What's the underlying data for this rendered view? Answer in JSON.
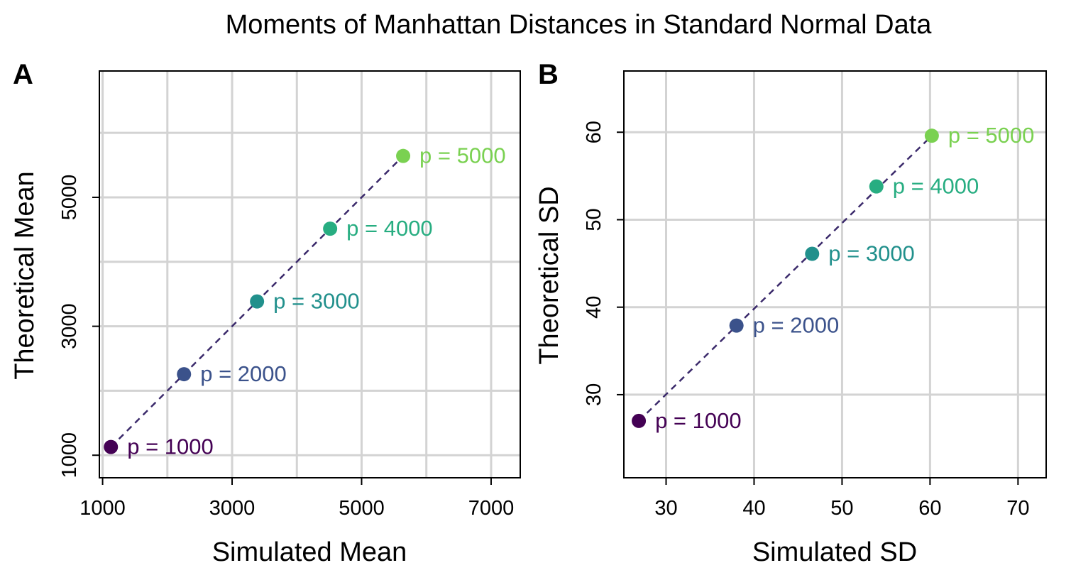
{
  "figure": {
    "title": "Moments of Manhattan Distances in Standard Normal Data"
  },
  "chart_data": [
    {
      "panel": "A",
      "type": "scatter",
      "xlabel": "Simulated Mean",
      "ylabel": "Theoretical Mean",
      "xlim": [
        950,
        7450
      ],
      "ylim": [
        650,
        6960
      ],
      "xticks": [
        1000,
        3000,
        5000,
        7000
      ],
      "xtick_labels": [
        "1000",
        "3000",
        "5000",
        "7000"
      ],
      "yticks": [
        1000,
        3000,
        5000
      ],
      "ytick_labels": [
        "1000",
        "3000",
        "5000"
      ],
      "x_grid": [
        1000,
        2000,
        3000,
        4000,
        5000,
        6000,
        7000
      ],
      "y_grid": [
        1000,
        2000,
        3000,
        4000,
        5000,
        6000
      ],
      "grid": true,
      "reference_line": "dashed line through points",
      "points": [
        {
          "label": "p = 1000",
          "x": 1128,
          "y": 1128,
          "color": "#440154"
        },
        {
          "label": "p = 2000",
          "x": 2257,
          "y": 2257,
          "color": "#3b528b"
        },
        {
          "label": "p = 3000",
          "x": 3385,
          "y": 3385,
          "color": "#21908c"
        },
        {
          "label": "p = 4000",
          "x": 4514,
          "y": 4514,
          "color": "#27ad81"
        },
        {
          "label": "p = 5000",
          "x": 5642,
          "y": 5642,
          "color": "#7ad151"
        }
      ]
    },
    {
      "panel": "B",
      "type": "scatter",
      "xlabel": "Simulated SD",
      "ylabel": "Theoretical SD",
      "xlim": [
        25.2,
        73.2
      ],
      "ylim": [
        20.5,
        67
      ],
      "xticks": [
        30,
        40,
        50,
        60,
        70
      ],
      "xtick_labels": [
        "30",
        "40",
        "50",
        "60",
        "70"
      ],
      "yticks": [
        30,
        40,
        50,
        60
      ],
      "ytick_labels": [
        "30",
        "40",
        "50",
        "60"
      ],
      "x_grid": [
        30,
        40,
        50,
        60,
        70
      ],
      "y_grid": [
        30,
        40,
        50,
        60
      ],
      "grid": true,
      "reference_line": "dashed line through points",
      "points": [
        {
          "label": "p = 1000",
          "x": 26.9,
          "y": 27.0,
          "color": "#440154"
        },
        {
          "label": "p = 2000",
          "x": 38.0,
          "y": 37.9,
          "color": "#3b528b"
        },
        {
          "label": "p = 3000",
          "x": 46.6,
          "y": 46.1,
          "color": "#21908c"
        },
        {
          "label": "p = 4000",
          "x": 53.9,
          "y": 53.8,
          "color": "#27ad81"
        },
        {
          "label": "p = 5000",
          "x": 60.2,
          "y": 59.6,
          "color": "#7ad151"
        }
      ]
    }
  ],
  "colors": {
    "grid": "#d3d3d3",
    "frame": "#000000",
    "line": "#3b2a6b"
  }
}
